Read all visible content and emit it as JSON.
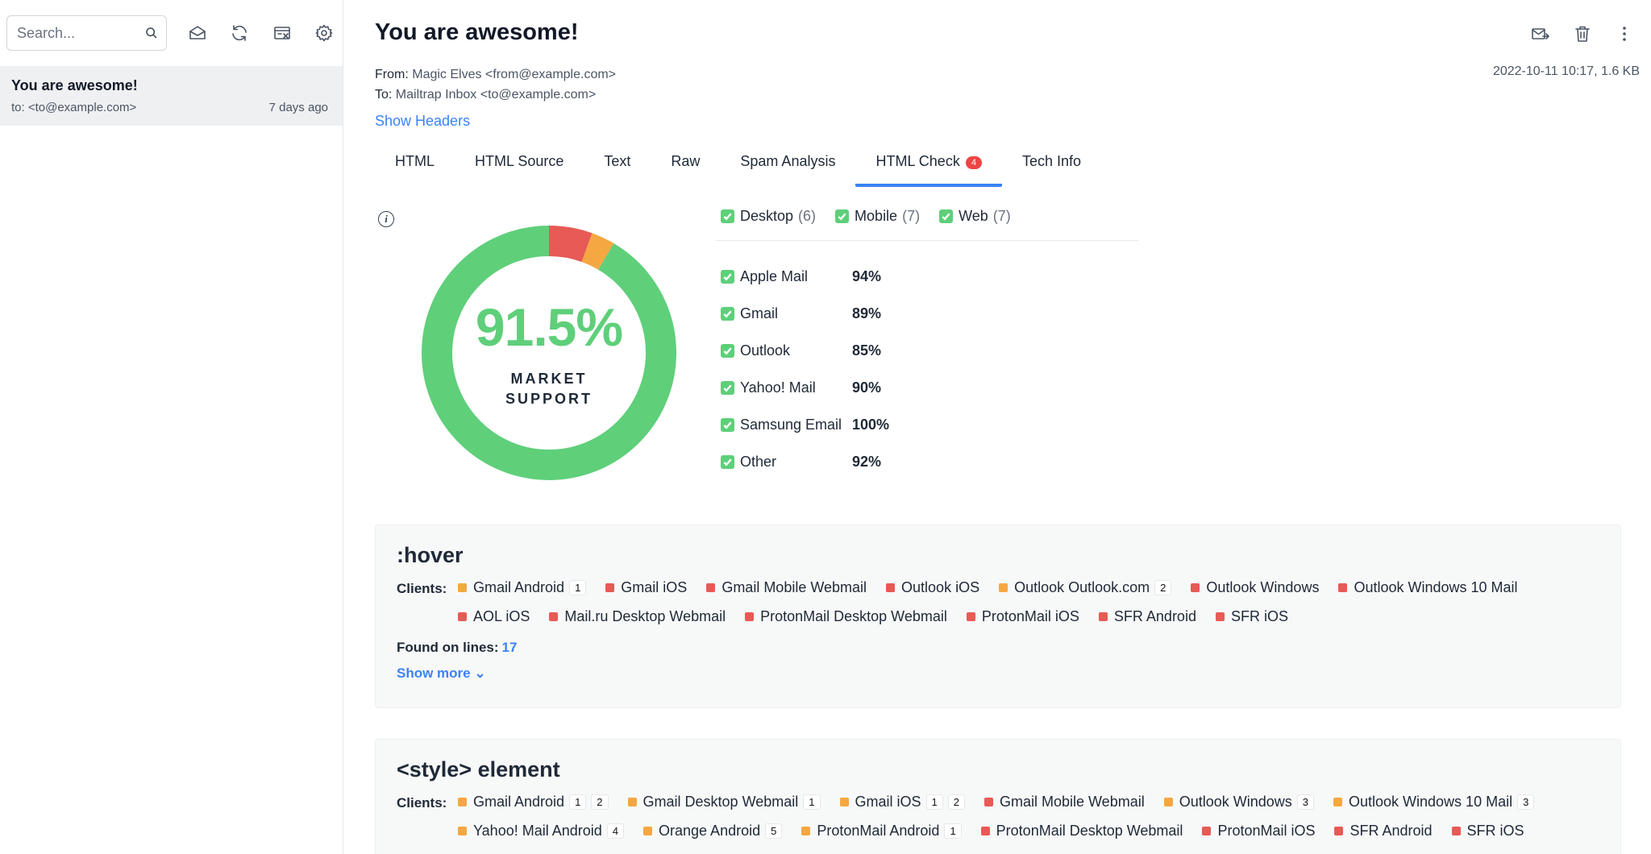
{
  "sidebar": {
    "search_placeholder": "Search...",
    "message": {
      "subject": "You are awesome!",
      "to": "to: <to@example.com>",
      "time": "7 days ago"
    }
  },
  "email": {
    "subject": "You are awesome!",
    "from_label": "From:",
    "from_value": "Magic Elves <from@example.com>",
    "to_label": "To:",
    "to_value": "Mailtrap Inbox <to@example.com>",
    "date_size": "2022-10-11 10:17, 1.6 KB",
    "show_headers": "Show Headers"
  },
  "tabs": [
    {
      "label": "HTML"
    },
    {
      "label": "HTML Source"
    },
    {
      "label": "Text"
    },
    {
      "label": "Raw"
    },
    {
      "label": "Spam Analysis"
    },
    {
      "label": "HTML Check",
      "badge": "4",
      "active": true
    },
    {
      "label": "Tech Info"
    }
  ],
  "summary": {
    "info_icon_text": "i",
    "percentage": "91.5%",
    "label_line1": "MARKET",
    "label_line2": "SUPPORT",
    "donut": {
      "supported": 0.915,
      "partial": 0.03,
      "unsupported": 0.055
    },
    "filters": [
      {
        "label": "Desktop",
        "count": "(6)"
      },
      {
        "label": "Mobile",
        "count": "(7)"
      },
      {
        "label": "Web",
        "count": "(7)"
      }
    ],
    "clients": [
      {
        "name": "Apple Mail",
        "pct": "94%"
      },
      {
        "name": "Gmail",
        "pct": "89%"
      },
      {
        "name": "Outlook",
        "pct": "85%"
      },
      {
        "name": "Yahoo! Mail",
        "pct": "90%"
      },
      {
        "name": "Samsung Email",
        "pct": "100%"
      },
      {
        "name": "Other",
        "pct": "92%"
      }
    ]
  },
  "colors": {
    "supported": "#5fcf7a",
    "partial": "#f5a742",
    "unsupported": "#e85a55",
    "accent": "#3b82f6"
  },
  "issues": [
    {
      "title": ":hover",
      "clients_label": "Clients:",
      "clients": [
        {
          "name": "Gmail Android",
          "status": "partial",
          "notes": [
            "1"
          ]
        },
        {
          "name": "Gmail iOS",
          "status": "unsupported",
          "notes": []
        },
        {
          "name": "Gmail Mobile Webmail",
          "status": "unsupported",
          "notes": []
        },
        {
          "name": "Outlook iOS",
          "status": "unsupported",
          "notes": []
        },
        {
          "name": "Outlook Outlook.com",
          "status": "partial",
          "notes": [
            "2"
          ]
        },
        {
          "name": "Outlook Windows",
          "status": "unsupported",
          "notes": []
        },
        {
          "name": "Outlook Windows 10 Mail",
          "status": "unsupported",
          "notes": []
        },
        {
          "name": "AOL iOS",
          "status": "unsupported",
          "notes": []
        },
        {
          "name": "Mail.ru Desktop Webmail",
          "status": "unsupported",
          "notes": []
        },
        {
          "name": "ProtonMail Desktop Webmail",
          "status": "unsupported",
          "notes": []
        },
        {
          "name": "ProtonMail iOS",
          "status": "unsupported",
          "notes": []
        },
        {
          "name": "SFR Android",
          "status": "unsupported",
          "notes": []
        },
        {
          "name": "SFR iOS",
          "status": "unsupported",
          "notes": []
        }
      ],
      "found_label": "Found on lines:",
      "lines": "17",
      "show_more": "Show more ⌄"
    },
    {
      "title": "<style> element",
      "clients_label": "Clients:",
      "clients": [
        {
          "name": "Gmail Android",
          "status": "partial",
          "notes": [
            "1",
            "2"
          ]
        },
        {
          "name": "Gmail Desktop Webmail",
          "status": "partial",
          "notes": [
            "1"
          ]
        },
        {
          "name": "Gmail iOS",
          "status": "partial",
          "notes": [
            "1",
            "2"
          ]
        },
        {
          "name": "Gmail Mobile Webmail",
          "status": "unsupported",
          "notes": []
        },
        {
          "name": "Outlook Windows",
          "status": "partial",
          "notes": [
            "3"
          ]
        },
        {
          "name": "Outlook Windows 10 Mail",
          "status": "partial",
          "notes": [
            "3"
          ]
        },
        {
          "name": "Yahoo! Mail Android",
          "status": "partial",
          "notes": [
            "4"
          ]
        },
        {
          "name": "Orange Android",
          "status": "partial",
          "notes": [
            "5"
          ]
        },
        {
          "name": "ProtonMail Android",
          "status": "partial",
          "notes": [
            "1"
          ]
        },
        {
          "name": "ProtonMail Desktop Webmail",
          "status": "unsupported",
          "notes": []
        },
        {
          "name": "ProtonMail iOS",
          "status": "unsupported",
          "notes": []
        },
        {
          "name": "SFR Android",
          "status": "unsupported",
          "notes": []
        },
        {
          "name": "SFR iOS",
          "status": "unsupported",
          "notes": []
        }
      ]
    }
  ]
}
